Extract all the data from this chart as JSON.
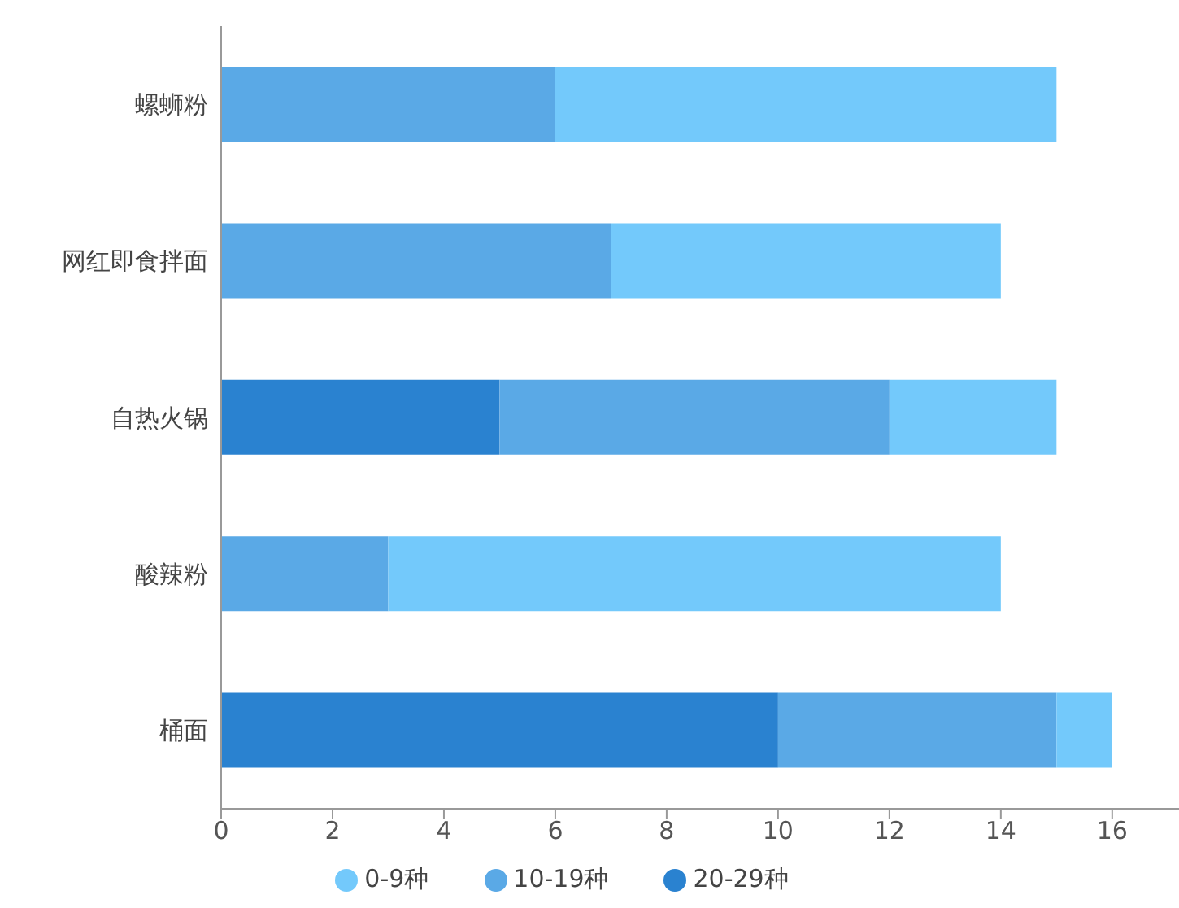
{
  "chart_data": {
    "type": "bar",
    "orientation": "horizontal",
    "stacked": true,
    "categories": [
      "螺蛳粉",
      "网红即食拌面",
      "自热火锅",
      "酸辣粉",
      "桶面"
    ],
    "series": [
      {
        "name": "20-29种",
        "color": "#2a82d0",
        "values": [
          0,
          0,
          5,
          0,
          10
        ]
      },
      {
        "name": "10-19种",
        "color": "#5aa9e6",
        "values": [
          6,
          7,
          7,
          3,
          5
        ]
      },
      {
        "name": "0-9种",
        "color": "#73c9fb",
        "values": [
          9,
          7,
          3,
          11,
          1
        ]
      }
    ],
    "xlim": [
      0,
      17.2
    ],
    "xticks": [
      0,
      2,
      4,
      6,
      8,
      10,
      12,
      14,
      16
    ],
    "grid": false,
    "legend": "bottom"
  }
}
